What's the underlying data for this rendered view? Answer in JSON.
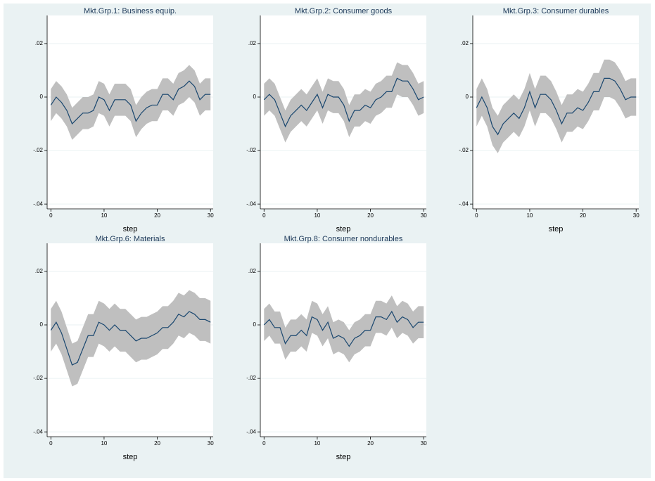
{
  "chart_data": [
    {
      "type": "line",
      "title": "Mkt.Grp.1: Business equip.",
      "xlabel": "step",
      "color": "#1a476f",
      "band_color": "#bfbfbf",
      "grid": true,
      "x": [
        0,
        1,
        2,
        3,
        4,
        5,
        6,
        7,
        8,
        9,
        10,
        11,
        12,
        13,
        14,
        15,
        16,
        17,
        18,
        19,
        20,
        21,
        22,
        23,
        24,
        25,
        26,
        27,
        28,
        29,
        30
      ],
      "values": [
        -0.003,
        0,
        -0.002,
        -0.005,
        -0.01,
        -0.008,
        -0.006,
        -0.006,
        -0.005,
        0,
        -0.001,
        -0.005,
        -0.001,
        -0.001,
        -0.001,
        -0.003,
        -0.009,
        -0.006,
        -0.004,
        -0.003,
        -0.003,
        0.001,
        0.001,
        -0.001,
        0.003,
        0.004,
        0.006,
        0.004,
        -0.001,
        0.001,
        0.001
      ],
      "upper": [
        0.003,
        0.006,
        0.004,
        0.001,
        -0.004,
        -0.002,
        0,
        0,
        0.001,
        0.006,
        0.005,
        0.001,
        0.005,
        0.005,
        0.005,
        0.003,
        -0.003,
        0,
        0.002,
        0.003,
        0.003,
        0.007,
        0.007,
        0.005,
        0.009,
        0.01,
        0.012,
        0.01,
        0.005,
        0.007,
        0.007
      ],
      "lower": [
        -0.009,
        -0.006,
        -0.008,
        -0.011,
        -0.016,
        -0.014,
        -0.012,
        -0.012,
        -0.011,
        -0.006,
        -0.007,
        -0.011,
        -0.007,
        -0.007,
        -0.007,
        -0.009,
        -0.015,
        -0.012,
        -0.01,
        -0.009,
        -0.009,
        -0.005,
        -0.005,
        -0.007,
        -0.003,
        -0.002,
        0,
        -0.002,
        -0.007,
        -0.005,
        -0.005
      ],
      "xlim": [
        -0.7,
        30.5
      ],
      "ylim": [
        -0.0418,
        0.0305
      ],
      "xticks": [
        0,
        10,
        20,
        30
      ],
      "yticks": [
        {
          "value": -0.04,
          "label": "-.04"
        },
        {
          "value": -0.02,
          "label": "-.02"
        },
        0,
        {
          "value": 0.02,
          "label": ".02"
        }
      ]
    },
    {
      "type": "line",
      "title": "Mkt.Grp.2: Consumer goods",
      "xlabel": "step",
      "color": "#1a476f",
      "band_color": "#bfbfbf",
      "grid": true,
      "x": [
        0,
        1,
        2,
        3,
        4,
        5,
        6,
        7,
        8,
        9,
        10,
        11,
        12,
        13,
        14,
        15,
        16,
        17,
        18,
        19,
        20,
        21,
        22,
        23,
        24,
        25,
        26,
        27,
        28,
        29,
        30
      ],
      "values": [
        -0.001,
        0.001,
        -0.001,
        -0.006,
        -0.011,
        -0.007,
        -0.005,
        -0.003,
        -0.005,
        -0.002,
        0.001,
        -0.004,
        0.001,
        0,
        0,
        -0.003,
        -0.009,
        -0.005,
        -0.005,
        -0.003,
        -0.004,
        -0.001,
        0,
        0.002,
        0.002,
        0.007,
        0.006,
        0.006,
        0.003,
        -0.001,
        0
      ],
      "upper": [
        0.005,
        0.007,
        0.005,
        0,
        -0.005,
        -0.001,
        0.001,
        0.003,
        0.001,
        0.004,
        0.007,
        0.002,
        0.007,
        0.006,
        0.006,
        0.003,
        -0.003,
        0.001,
        0.001,
        0.003,
        0.002,
        0.005,
        0.006,
        0.008,
        0.008,
        0.013,
        0.012,
        0.012,
        0.009,
        0.005,
        0.006
      ],
      "lower": [
        -0.007,
        -0.005,
        -0.007,
        -0.012,
        -0.017,
        -0.013,
        -0.011,
        -0.009,
        -0.011,
        -0.008,
        -0.005,
        -0.01,
        -0.005,
        -0.006,
        -0.006,
        -0.009,
        -0.015,
        -0.011,
        -0.011,
        -0.009,
        -0.01,
        -0.007,
        -0.006,
        -0.004,
        -0.004,
        0.001,
        0,
        0,
        -0.003,
        -0.007,
        -0.006
      ],
      "xlim": [
        -0.7,
        30.5
      ],
      "ylim": [
        -0.0418,
        0.0305
      ],
      "xticks": [
        0,
        10,
        20,
        30
      ],
      "yticks": [
        {
          "value": -0.04,
          "label": "-.04"
        },
        {
          "value": -0.02,
          "label": "-.02"
        },
        0,
        {
          "value": 0.02,
          "label": ".02"
        }
      ]
    },
    {
      "type": "line",
      "title": "Mkt.Grp.3: Consumer durables",
      "xlabel": "step",
      "color": "#1a476f",
      "band_color": "#bfbfbf",
      "grid": true,
      "x": [
        0,
        1,
        2,
        3,
        4,
        5,
        6,
        7,
        8,
        9,
        10,
        11,
        12,
        13,
        14,
        15,
        16,
        17,
        18,
        19,
        20,
        21,
        22,
        23,
        24,
        25,
        26,
        27,
        28,
        29,
        30
      ],
      "values": [
        -0.004,
        0,
        -0.004,
        -0.011,
        -0.014,
        -0.01,
        -0.008,
        -0.006,
        -0.008,
        -0.004,
        0.002,
        -0.004,
        0.001,
        0.001,
        -0.001,
        -0.005,
        -0.01,
        -0.006,
        -0.006,
        -0.004,
        -0.005,
        -0.002,
        0.002,
        0.002,
        0.007,
        0.007,
        0.006,
        0.003,
        -0.001,
        0,
        0
      ],
      "upper": [
        0.003,
        0.007,
        0.003,
        -0.004,
        -0.007,
        -0.003,
        -0.001,
        0.001,
        -0.001,
        0.003,
        0.009,
        0.003,
        0.008,
        0.008,
        0.006,
        0.002,
        -0.003,
        0.001,
        0.001,
        0.003,
        0.002,
        0.005,
        0.009,
        0.009,
        0.014,
        0.014,
        0.013,
        0.01,
        0.006,
        0.007,
        0.007
      ],
      "lower": [
        -0.011,
        -0.007,
        -0.011,
        -0.018,
        -0.021,
        -0.017,
        -0.015,
        -0.013,
        -0.015,
        -0.011,
        -0.005,
        -0.011,
        -0.006,
        -0.006,
        -0.008,
        -0.012,
        -0.017,
        -0.013,
        -0.013,
        -0.011,
        -0.012,
        -0.009,
        -0.005,
        -0.005,
        0,
        0,
        -0.001,
        -0.004,
        -0.008,
        -0.007,
        -0.007
      ],
      "xlim": [
        -0.7,
        30.5
      ],
      "ylim": [
        -0.0418,
        0.0305
      ],
      "xticks": [
        0,
        10,
        20,
        30
      ],
      "yticks": [
        {
          "value": -0.04,
          "label": "-.04"
        },
        {
          "value": -0.02,
          "label": "-.02"
        },
        0,
        {
          "value": 0.02,
          "label": ".02"
        }
      ]
    },
    {
      "type": "line",
      "title": "Mkt.Grp.6: Materials",
      "xlabel": "step",
      "color": "#1a476f",
      "band_color": "#bfbfbf",
      "grid": true,
      "x": [
        0,
        1,
        2,
        3,
        4,
        5,
        6,
        7,
        8,
        9,
        10,
        11,
        12,
        13,
        14,
        15,
        16,
        17,
        18,
        19,
        20,
        21,
        22,
        23,
        24,
        25,
        26,
        27,
        28,
        29,
        30
      ],
      "values": [
        -0.002,
        0.001,
        -0.003,
        -0.009,
        -0.015,
        -0.014,
        -0.009,
        -0.004,
        -0.004,
        0.001,
        0,
        -0.002,
        0,
        -0.002,
        -0.002,
        -0.004,
        -0.006,
        -0.005,
        -0.005,
        -0.004,
        -0.003,
        -0.001,
        -0.001,
        0.001,
        0.004,
        0.003,
        0.005,
        0.004,
        0.002,
        0.002,
        0.001
      ],
      "upper": [
        0.006,
        0.009,
        0.005,
        -0.001,
        -0.007,
        -0.006,
        -0.001,
        0.004,
        0.004,
        0.009,
        0.008,
        0.006,
        0.008,
        0.006,
        0.006,
        0.004,
        0.002,
        0.003,
        0.003,
        0.004,
        0.005,
        0.007,
        0.007,
        0.009,
        0.012,
        0.011,
        0.013,
        0.012,
        0.01,
        0.01,
        0.009
      ],
      "lower": [
        -0.01,
        -0.007,
        -0.011,
        -0.017,
        -0.023,
        -0.022,
        -0.017,
        -0.012,
        -0.012,
        -0.007,
        -0.008,
        -0.01,
        -0.008,
        -0.01,
        -0.01,
        -0.012,
        -0.014,
        -0.013,
        -0.013,
        -0.012,
        -0.011,
        -0.009,
        -0.009,
        -0.007,
        -0.004,
        -0.005,
        -0.003,
        -0.004,
        -0.006,
        -0.006,
        -0.007
      ],
      "xlim": [
        -0.7,
        30.5
      ],
      "ylim": [
        -0.0418,
        0.0305
      ],
      "xticks": [
        0,
        10,
        20,
        30
      ],
      "yticks": [
        {
          "value": -0.04,
          "label": "-.04"
        },
        {
          "value": -0.02,
          "label": "-.02"
        },
        0,
        {
          "value": 0.02,
          "label": ".02"
        }
      ]
    },
    {
      "type": "line",
      "title": "Mkt.Grp.8: Consumer nondurables",
      "xlabel": "step",
      "color": "#1a476f",
      "band_color": "#bfbfbf",
      "grid": true,
      "x": [
        0,
        1,
        2,
        3,
        4,
        5,
        6,
        7,
        8,
        9,
        10,
        11,
        12,
        13,
        14,
        15,
        16,
        17,
        18,
        19,
        20,
        21,
        22,
        23,
        24,
        25,
        26,
        27,
        28,
        29,
        30
      ],
      "values": [
        0,
        0.002,
        -0.001,
        -0.001,
        -0.007,
        -0.004,
        -0.004,
        -0.002,
        -0.004,
        0.003,
        0.002,
        -0.002,
        0.001,
        -0.005,
        -0.004,
        -0.005,
        -0.008,
        -0.005,
        -0.004,
        -0.002,
        -0.002,
        0.003,
        0.003,
        0.002,
        0.005,
        0.001,
        0.003,
        0.002,
        -0.001,
        0.001,
        0.001
      ],
      "upper": [
        0.006,
        0.008,
        0.005,
        0.005,
        -0.001,
        0.002,
        0.002,
        0.004,
        0.002,
        0.009,
        0.008,
        0.004,
        0.007,
        0.001,
        0.002,
        0.001,
        -0.002,
        0.001,
        0.002,
        0.004,
        0.004,
        0.009,
        0.009,
        0.008,
        0.011,
        0.007,
        0.009,
        0.008,
        0.005,
        0.007,
        0.007
      ],
      "lower": [
        -0.006,
        -0.004,
        -0.007,
        -0.007,
        -0.013,
        -0.01,
        -0.01,
        -0.008,
        -0.01,
        -0.003,
        -0.004,
        -0.008,
        -0.005,
        -0.011,
        -0.01,
        -0.011,
        -0.014,
        -0.011,
        -0.01,
        -0.008,
        -0.008,
        -0.003,
        -0.003,
        -0.004,
        -0.001,
        -0.005,
        -0.003,
        -0.004,
        -0.007,
        -0.005,
        -0.005
      ],
      "xlim": [
        -0.7,
        30.5
      ],
      "ylim": [
        -0.0418,
        0.0305
      ],
      "xticks": [
        0,
        10,
        20,
        30
      ],
      "yticks": [
        {
          "value": -0.04,
          "label": "-.04"
        },
        {
          "value": -0.02,
          "label": "-.02"
        },
        0,
        {
          "value": 0.02,
          "label": ".02"
        }
      ]
    }
  ]
}
